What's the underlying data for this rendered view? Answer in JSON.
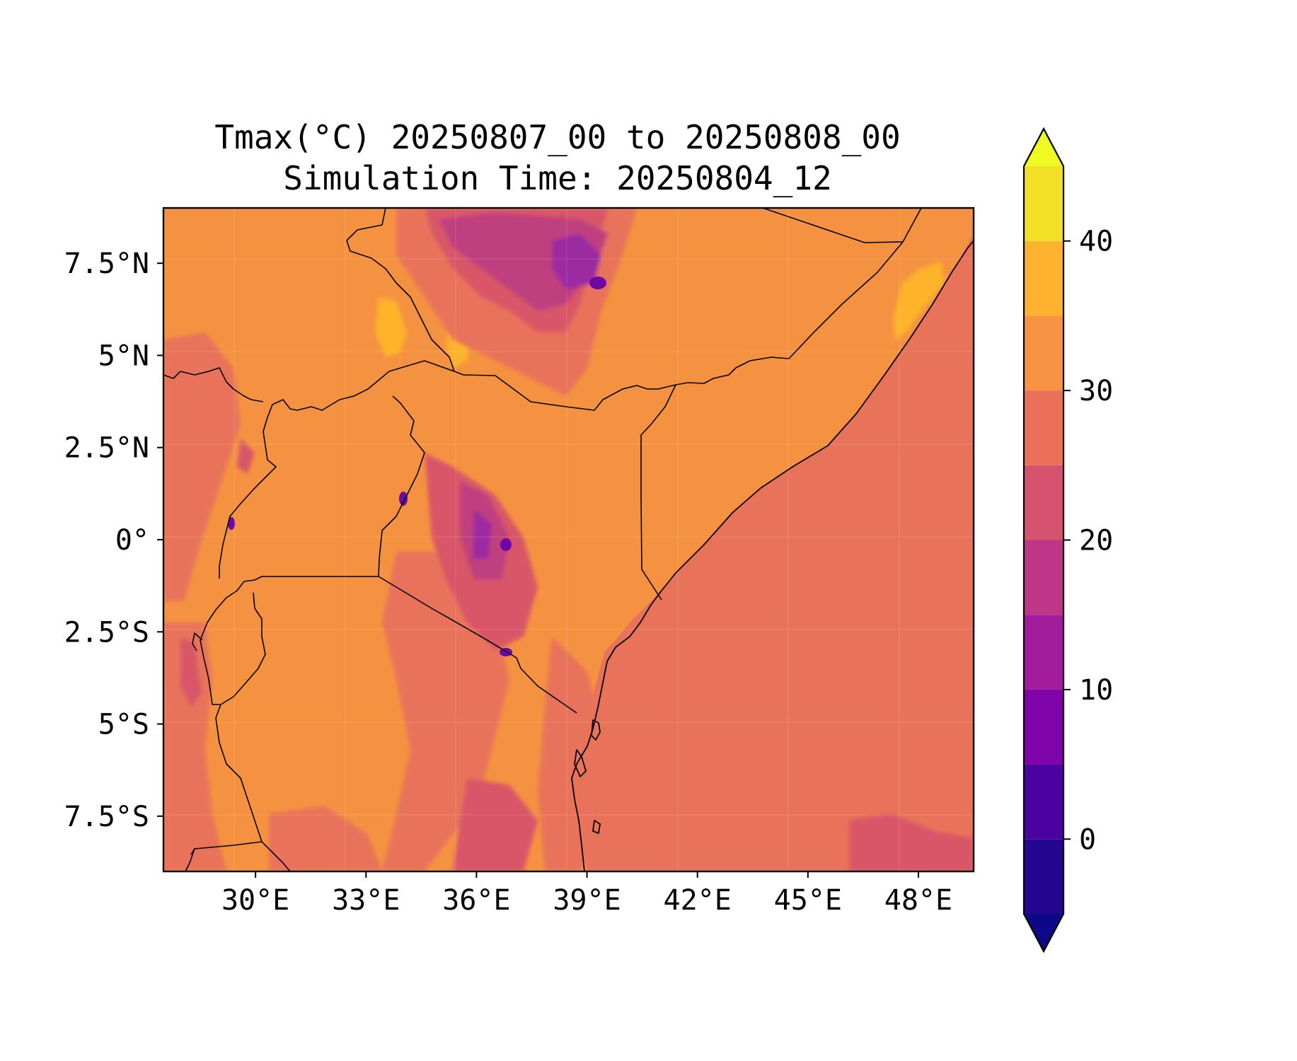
{
  "figure": {
    "title_line1": "Tmax(°C) 20250807_00 to 20250808_00",
    "title_line2": "Simulation Time: 20250804_12"
  },
  "map": {
    "lon_range": [
      27.5,
      49.5
    ],
    "lat_range": [
      -9.0,
      9.0
    ],
    "x_ticks": [
      {
        "value": 30,
        "label": "30°E"
      },
      {
        "value": 33,
        "label": "33°E"
      },
      {
        "value": 36,
        "label": "36°E"
      },
      {
        "value": 39,
        "label": "39°E"
      },
      {
        "value": 42,
        "label": "42°E"
      },
      {
        "value": 45,
        "label": "45°E"
      },
      {
        "value": 48,
        "label": "48°E"
      }
    ],
    "y_ticks": [
      {
        "value": 7.5,
        "label": "7.5°N"
      },
      {
        "value": 5,
        "label": "5°N"
      },
      {
        "value": 2.5,
        "label": "2.5°N"
      },
      {
        "value": 0,
        "label": "0°"
      },
      {
        "value": -2.5,
        "label": "2.5°S"
      },
      {
        "value": -5,
        "label": "5°S"
      },
      {
        "value": -7.5,
        "label": "7.5°S"
      }
    ],
    "field_colors": {
      "ocean": "#e8735a",
      "land_base": "#f59241",
      "warm": "#fdb32a",
      "cool1": "#d95668",
      "cool2": "#c0407f",
      "cool3": "#9c2ba0",
      "cool4": "#6f06a6"
    }
  },
  "colorbar": {
    "levels": [
      -5,
      0,
      5,
      10,
      15,
      20,
      25,
      30,
      35,
      40,
      45
    ],
    "colors": [
      "#240691",
      "#4c02a1",
      "#7e03a8",
      "#a11b9b",
      "#bd3786",
      "#d5536f",
      "#ea7058",
      "#f79342",
      "#fdb22f",
      "#f2e027"
    ],
    "under_color": "#0d0887",
    "over_color": "#f0f921",
    "ticks": [
      {
        "value": 0,
        "label": "0"
      },
      {
        "value": 10,
        "label": "10"
      },
      {
        "value": 20,
        "label": "20"
      },
      {
        "value": 30,
        "label": "30"
      },
      {
        "value": 40,
        "label": "40"
      }
    ]
  }
}
